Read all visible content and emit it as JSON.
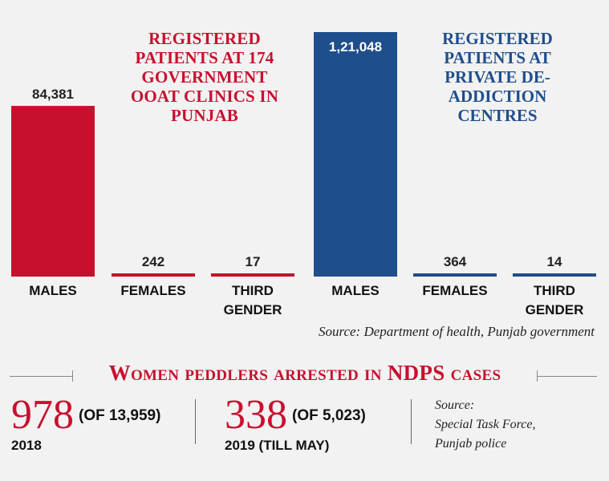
{
  "chart_data": [
    {
      "type": "bar",
      "title": "REGISTERED PATIENTS AT 174 GOVERNMENT OOAT CLINICS IN PUNJAB",
      "categories": [
        "MALES",
        "FEMALES",
        "THIRD GENDER"
      ],
      "values": [
        84381,
        242,
        17
      ],
      "value_labels": [
        "84,381",
        "242",
        "17"
      ],
      "color": "#c8102e"
    },
    {
      "type": "bar",
      "title": "REGISTERED PATIENTS AT PRIVATE DE-ADDICTION CENTRES",
      "categories": [
        "MALES",
        "FEMALES",
        "THIRD GENDER"
      ],
      "values": [
        121048,
        364,
        14
      ],
      "value_labels": [
        "1,21,048",
        "364",
        "14"
      ],
      "color": "#1f4e8c"
    }
  ],
  "titles": {
    "red": "REGISTERED PATIENTS AT 174 GOVERNMENT OOAT CLINICS IN PUNJAB",
    "blue": "REGISTERED PATIENTS AT PRIVATE DE-ADDICTION CENTRES"
  },
  "source_health": "Source: Department of health, Punjab government",
  "section_title": "Women peddlers arrested in NDPS cases",
  "stats": [
    {
      "value": "978",
      "of": "(OF 13,959)",
      "year": "2018"
    },
    {
      "value": "338",
      "of": "(OF 5,023)",
      "year": "2019 (TILL MAY)"
    }
  ],
  "source_police": [
    "Source:",
    "Special Task Force,",
    "Punjab police"
  ]
}
